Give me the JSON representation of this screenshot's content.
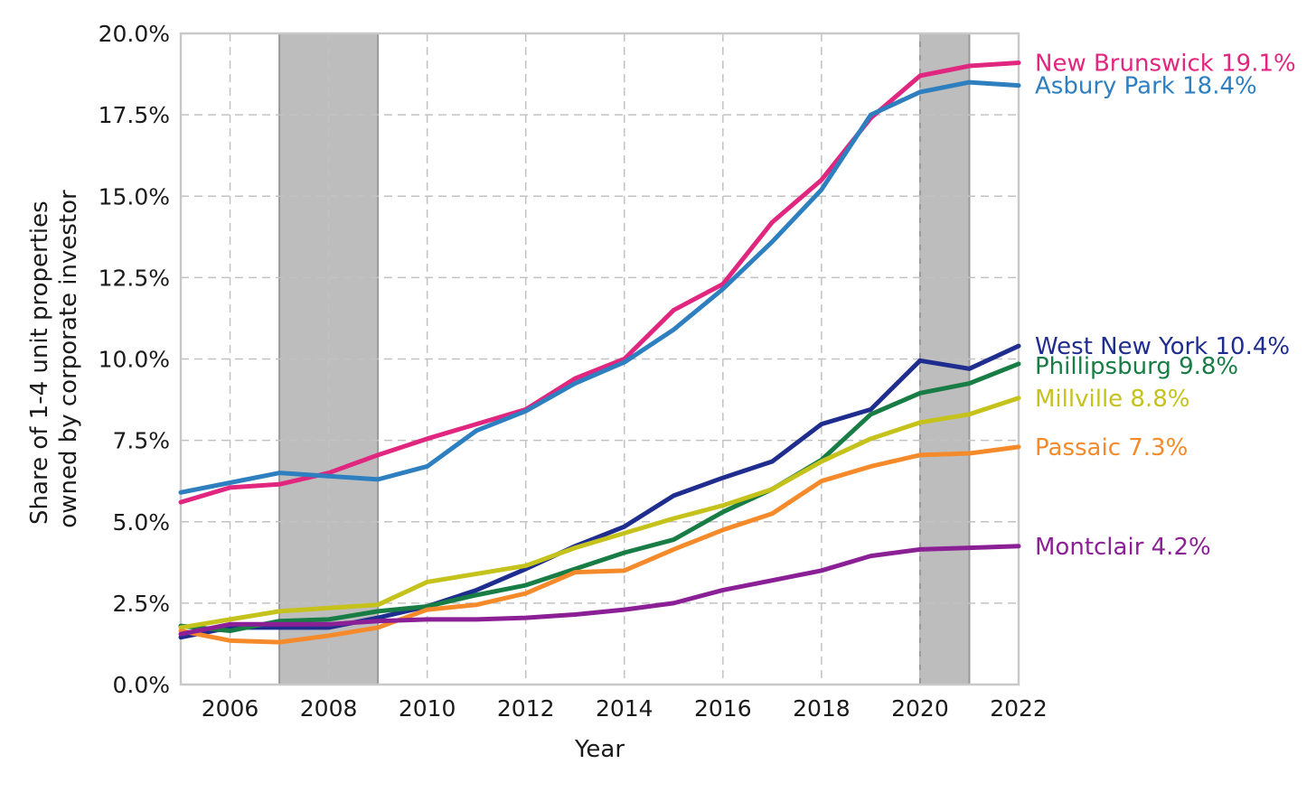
{
  "chart_data": {
    "type": "line",
    "xlabel": "Year",
    "ylabel_lines": [
      "Share of 1-4 unit properties",
      "owned by corporate investor"
    ],
    "xlim": [
      2005,
      2022
    ],
    "ylim": [
      0,
      20
    ],
    "x_ticks": [
      2006,
      2008,
      2010,
      2012,
      2014,
      2016,
      2018,
      2020,
      2022
    ],
    "y_ticks": [
      0,
      2.5,
      5,
      7.5,
      10,
      12.5,
      15,
      17.5,
      20
    ],
    "y_tick_labels": [
      "0.0%",
      "2.5%",
      "5.0%",
      "7.5%",
      "10.0%",
      "12.5%",
      "15.0%",
      "17.5%",
      "20.0%"
    ],
    "grid": true,
    "shaded_periods": [
      [
        2007,
        2009
      ],
      [
        2020,
        2021
      ]
    ],
    "x": [
      2005,
      2006,
      2007,
      2008,
      2009,
      2010,
      2011,
      2012,
      2013,
      2014,
      2015,
      2016,
      2017,
      2018,
      2019,
      2020,
      2021,
      2022
    ],
    "series": [
      {
        "name": "New Brunswick",
        "end_label": "New Brunswick 19.1%",
        "color": "#e0267f",
        "values": [
          5.6,
          6.05,
          6.15,
          6.5,
          7.05,
          7.55,
          8.0,
          8.45,
          9.4,
          10.0,
          11.5,
          12.3,
          14.2,
          15.5,
          17.4,
          18.7,
          19.0,
          19.1
        ]
      },
      {
        "name": "Asbury Park",
        "end_label": "Asbury Park 18.4%",
        "color": "#2e7fbf",
        "values": [
          5.9,
          6.2,
          6.5,
          6.4,
          6.3,
          6.7,
          7.8,
          8.4,
          9.25,
          9.9,
          10.9,
          12.15,
          13.6,
          15.2,
          17.5,
          18.2,
          18.5,
          18.4
        ]
      },
      {
        "name": "West New York",
        "end_label": "West New York 10.4%",
        "color": "#1f2d8f",
        "values": [
          1.45,
          1.75,
          1.75,
          1.75,
          2.05,
          2.4,
          2.9,
          3.55,
          4.25,
          4.85,
          5.8,
          6.35,
          6.85,
          8.0,
          8.45,
          9.95,
          9.7,
          10.4
        ]
      },
      {
        "name": "Phillipsburg",
        "end_label": "Phillipsburg 9.8%",
        "color": "#177d45",
        "values": [
          1.8,
          1.65,
          1.95,
          2.0,
          2.25,
          2.4,
          2.75,
          3.05,
          3.55,
          4.05,
          4.45,
          5.3,
          6.0,
          6.9,
          8.3,
          8.95,
          9.25,
          9.85
        ]
      },
      {
        "name": "Millville",
        "end_label": "Millville 8.8%",
        "color": "#c5c21c",
        "values": [
          1.75,
          2.0,
          2.25,
          2.35,
          2.45,
          3.15,
          3.4,
          3.65,
          4.2,
          4.65,
          5.1,
          5.5,
          6.0,
          6.85,
          7.55,
          8.05,
          8.3,
          8.8
        ]
      },
      {
        "name": "Passaic",
        "end_label": "Passaic 7.3%",
        "color": "#f58a2a",
        "values": [
          1.65,
          1.35,
          1.3,
          1.5,
          1.75,
          2.3,
          2.45,
          2.8,
          3.45,
          3.5,
          4.15,
          4.75,
          5.25,
          6.25,
          6.7,
          7.05,
          7.1,
          7.3
        ]
      },
      {
        "name": "Montclair",
        "end_label": "Montclair 4.2%",
        "color": "#8b2096",
        "values": [
          1.55,
          1.85,
          1.85,
          1.85,
          1.95,
          2.0,
          2.0,
          2.05,
          2.15,
          2.3,
          2.5,
          2.9,
          3.2,
          3.5,
          3.95,
          4.15,
          4.2,
          4.25
        ]
      }
    ]
  }
}
